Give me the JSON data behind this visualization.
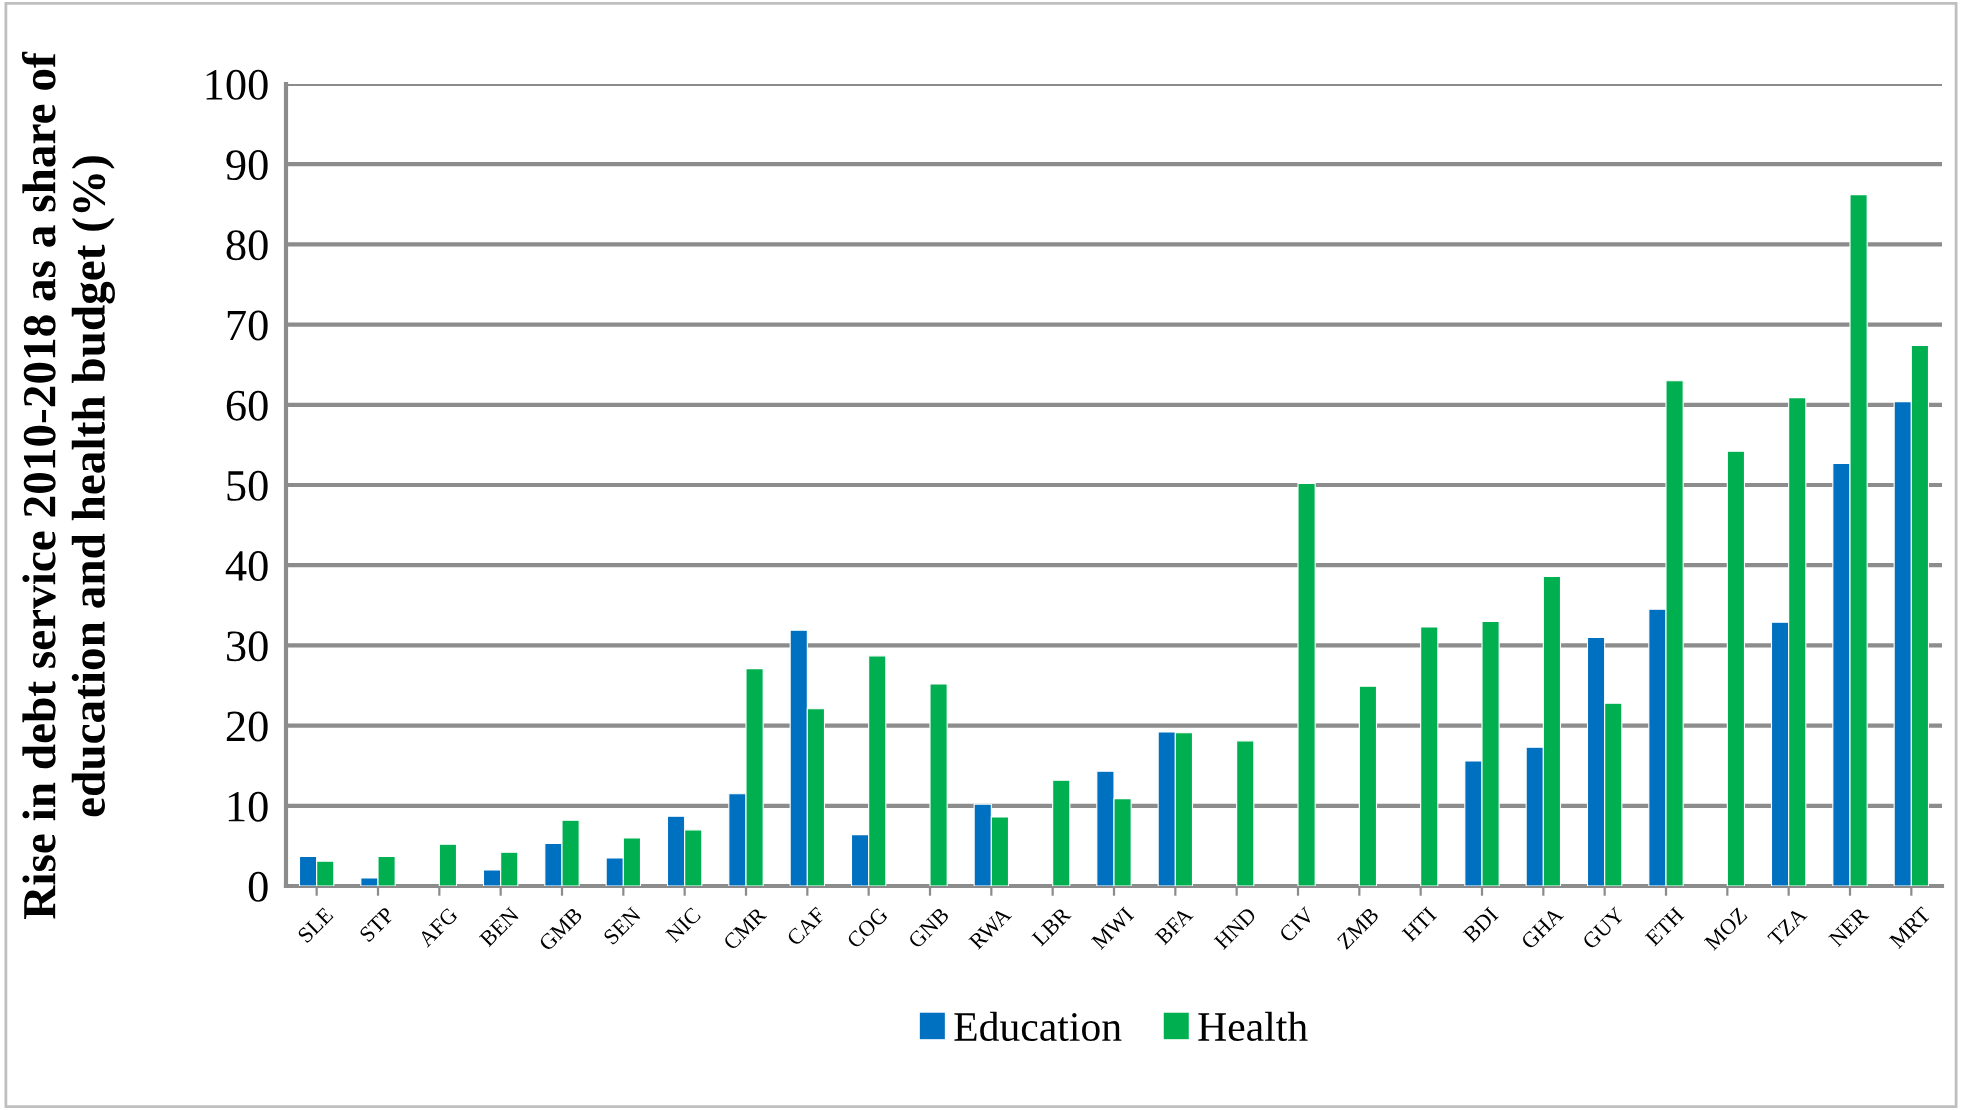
{
  "chart_data": {
    "type": "bar",
    "ylabel": "Rise in debt service 2010-2018 as a share of education and health budget (%)",
    "categories": [
      "SLE",
      "STP",
      "AFG",
      "BEN",
      "GMB",
      "SEN",
      "NIC",
      "CMR",
      "CAF",
      "COG",
      "GNB",
      "RWA",
      "LBR",
      "MWI",
      "BFA",
      "HND",
      "CIV",
      "ZMB",
      "HTI",
      "BDI",
      "GHA",
      "GUY",
      "ETH",
      "MOZ",
      "TZA",
      "NER",
      "MRT"
    ],
    "series": [
      {
        "name": "Education",
        "color": "#0070c0",
        "values": [
          3.7,
          1.0,
          null,
          2.0,
          5.3,
          3.5,
          8.7,
          11.5,
          31.9,
          6.4,
          null,
          10.2,
          null,
          14.3,
          19.2,
          null,
          null,
          null,
          null,
          15.6,
          17.3,
          31.0,
          34.5,
          null,
          32.9,
          52.7,
          60.4
        ]
      },
      {
        "name": "Health",
        "color": "#00b050",
        "values": [
          3.1,
          3.7,
          5.2,
          4.2,
          8.2,
          6.0,
          7.0,
          27.1,
          22.1,
          28.7,
          25.2,
          8.6,
          13.2,
          10.9,
          19.1,
          18.1,
          50.2,
          24.9,
          32.3,
          33.0,
          38.6,
          22.8,
          63.0,
          54.2,
          60.9,
          86.2,
          67.4
        ]
      }
    ],
    "ylim": [
      0,
      100
    ],
    "yticks": [
      0,
      10,
      20,
      30,
      40,
      50,
      60,
      70,
      80,
      90,
      100
    ],
    "grid": "y",
    "legend": "bottom"
  }
}
